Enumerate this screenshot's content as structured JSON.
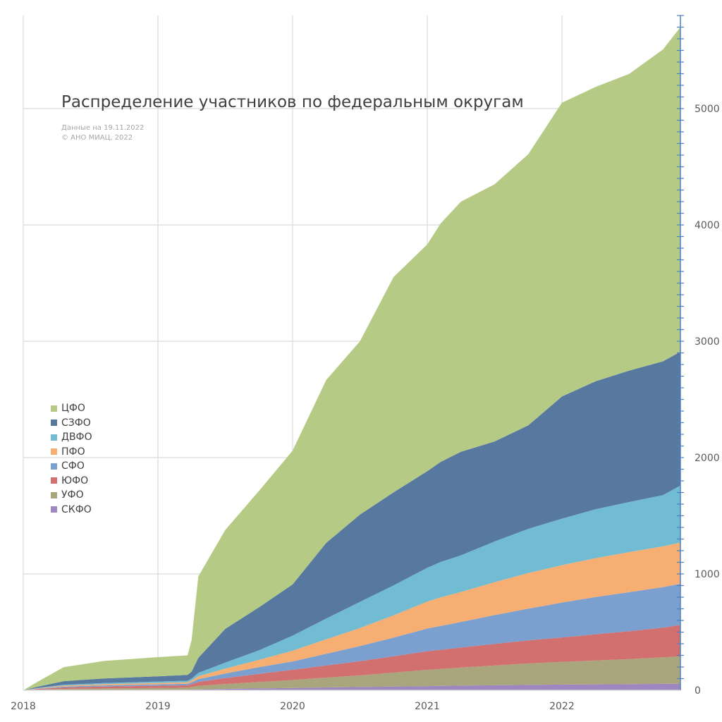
{
  "chart_data": {
    "type": "area",
    "stacked": true,
    "title": "Распределение участников по федеральным округам",
    "subtitle_lines": [
      "Данные на 19.11.2022",
      "© АНО МИАЦ, 2022"
    ],
    "xlabel": "",
    "ylabel": "",
    "x_ticks": [
      "2018",
      "2019",
      "2020",
      "2021",
      "2022"
    ],
    "y_ticks": [
      0,
      1000,
      2000,
      3000,
      4000,
      5000
    ],
    "xlim": [
      2018.0,
      2022.88
    ],
    "ylim": [
      0,
      5800
    ],
    "y_axis_side": "right",
    "grid": true,
    "legend_position": "left-middle",
    "x": [
      2018.0,
      2018.1,
      2018.3,
      2018.6,
      2019.0,
      2019.22,
      2019.25,
      2019.3,
      2019.5,
      2019.75,
      2020.0,
      2020.25,
      2020.5,
      2020.75,
      2021.0,
      2021.1,
      2021.25,
      2021.5,
      2021.75,
      2022.0,
      2022.25,
      2022.5,
      2022.75,
      2022.88
    ],
    "series": [
      {
        "name": "СКФО",
        "color": "#9e86c0",
        "values": [
          0,
          1,
          2,
          3,
          4,
          5,
          6,
          8,
          12,
          16,
          20,
          24,
          28,
          32,
          36,
          38,
          40,
          43,
          46,
          49,
          51,
          53,
          55,
          56
        ]
      },
      {
        "name": "УФО",
        "color": "#a9a57c",
        "values": [
          0,
          4,
          10,
          13,
          16,
          18,
          22,
          30,
          42,
          55,
          68,
          85,
          100,
          120,
          140,
          145,
          155,
          170,
          185,
          195,
          205,
          215,
          228,
          235
        ]
      },
      {
        "name": "ЮФО",
        "color": "#d26f6f",
        "values": [
          0,
          5,
          12,
          16,
          19,
          20,
          24,
          34,
          50,
          70,
          88,
          105,
          122,
          140,
          160,
          165,
          172,
          185,
          198,
          210,
          225,
          240,
          255,
          270
        ]
      },
      {
        "name": "СФО",
        "color": "#7b9fcf",
        "values": [
          0,
          3,
          8,
          10,
          12,
          13,
          16,
          24,
          40,
          58,
          72,
          100,
          130,
          160,
          195,
          205,
          220,
          248,
          272,
          300,
          320,
          335,
          348,
          355
        ]
      },
      {
        "name": "ПФО",
        "color": "#f6ae72",
        "values": [
          0,
          3,
          8,
          10,
          12,
          13,
          16,
          25,
          42,
          62,
          92,
          125,
          155,
          192,
          232,
          245,
          258,
          283,
          306,
          321,
          335,
          345,
          351,
          354
        ]
      },
      {
        "name": "ДВФО",
        "color": "#71bcd2",
        "values": [
          0,
          3,
          8,
          10,
          12,
          13,
          16,
          28,
          52,
          82,
          130,
          178,
          225,
          258,
          290,
          305,
          315,
          350,
          380,
          400,
          420,
          430,
          440,
          490
        ]
      },
      {
        "name": "СЗФО",
        "color": "#57789f",
        "values": [
          0,
          10,
          30,
          40,
          45,
          50,
          60,
          130,
          290,
          370,
          440,
          650,
          750,
          800,
          830,
          860,
          890,
          860,
          890,
          1050,
          1100,
          1130,
          1150,
          1150
        ]
      },
      {
        "name": "ЦФО",
        "color": "#b5cb85",
        "values": [
          0,
          40,
          120,
          150,
          165,
          168,
          270,
          700,
          850,
          1000,
          1150,
          1400,
          1490,
          1850,
          1950,
          2050,
          2150,
          2210,
          2330,
          2525,
          2530,
          2550,
          2680,
          2790
        ]
      }
    ]
  }
}
